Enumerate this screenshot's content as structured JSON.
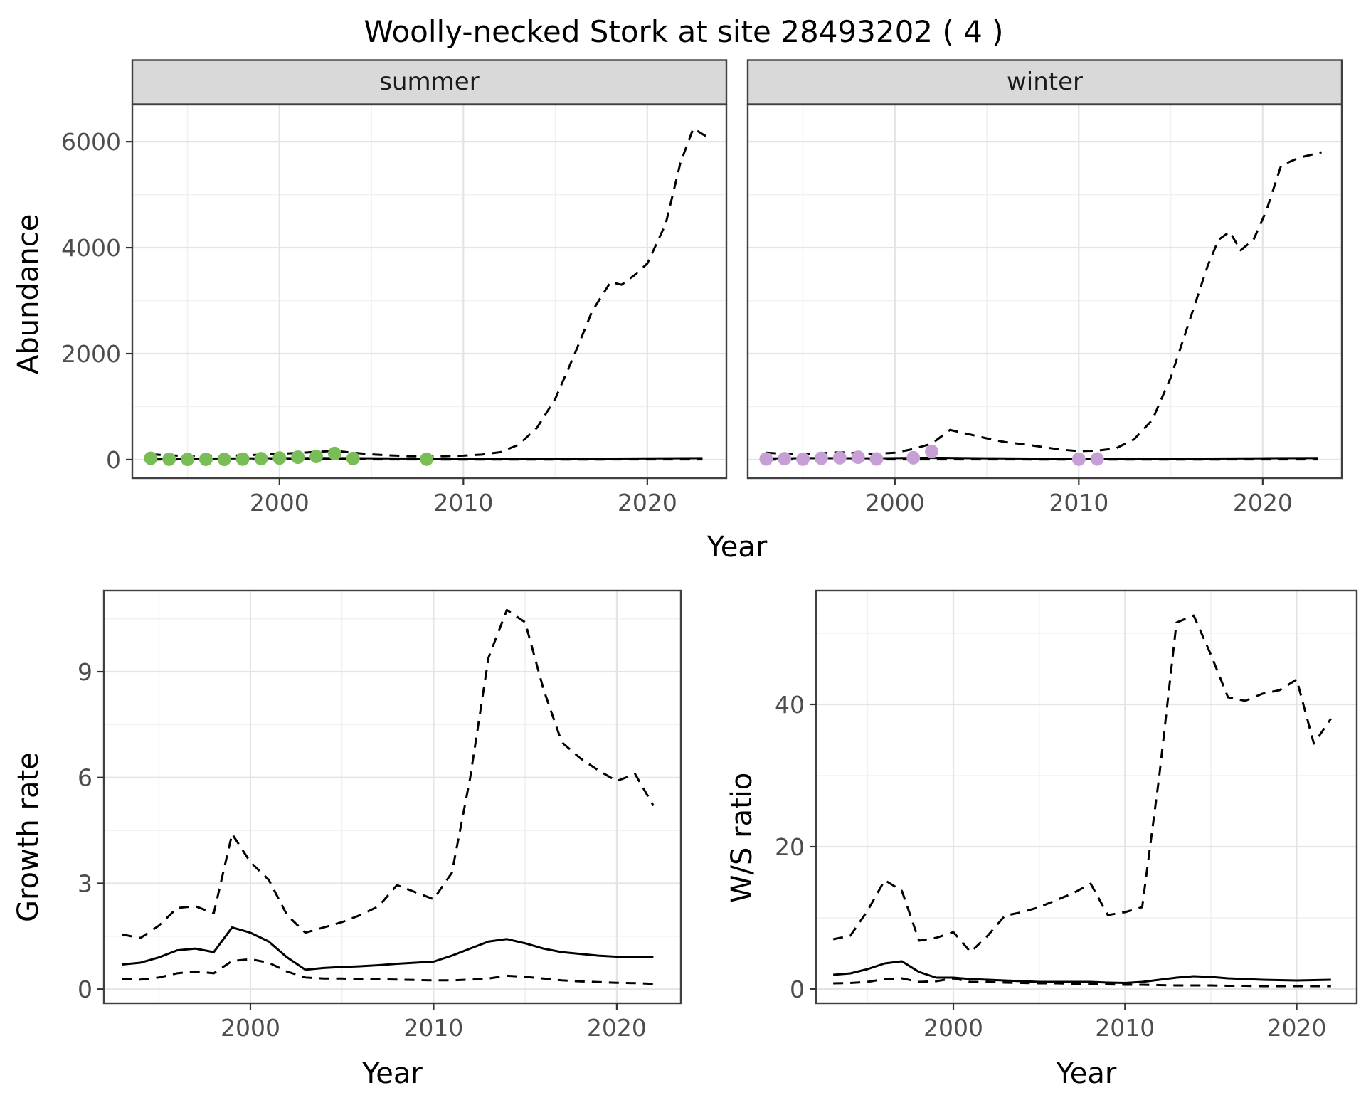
{
  "labels": {
    "title": "Woolly-necked Stork at site 28493202 ( 4 )",
    "x_shared": "Year",
    "y_top": "Abundance",
    "y_growth": "Growth rate",
    "y_ws": "W/S ratio",
    "x_bottom_left": "Year",
    "x_bottom_right": "Year",
    "facets": [
      "summer",
      "winter"
    ]
  },
  "colors": {
    "summer_points": "#79bd57",
    "winter_points": "#c59fd6",
    "line": "#000000",
    "strip_bg": "#d9d9d9",
    "strip_text": "#1a1a1a",
    "panel_border": "#404040",
    "grid_major": "#e4e4e4",
    "grid_minor": "#f1f1f1",
    "tick_text": "#4d4d4d",
    "tick_mark": "#333333"
  },
  "chart_data": [
    {
      "id": "abundance-summer",
      "type": "line",
      "facet_label": "summer",
      "xlabel": "Year",
      "ylabel": "Abundance",
      "xlim": [
        1992,
        2024.3
      ],
      "ylim": [
        -350,
        6700
      ],
      "xticks": [
        2000,
        2010,
        2020
      ],
      "xticks_minor": [
        1995,
        2005,
        2015
      ],
      "yticks": [
        0,
        2000,
        4000,
        6000
      ],
      "yticks_minor": [
        1000,
        3000,
        5000
      ],
      "grid": true,
      "legend": "none",
      "series": [
        {
          "name": "upper_ci",
          "style": "dashed",
          "x": [
            1993,
            1994,
            1995,
            1996,
            1997,
            1998,
            1999,
            2000,
            2001,
            2002,
            2003,
            2004,
            2005,
            2006,
            2007,
            2008,
            2009,
            2010,
            2011,
            2012,
            2013,
            2014,
            2015,
            2016,
            2017,
            2018,
            2018.6,
            2019.3,
            2020,
            2021,
            2021.8,
            2022.5,
            2023.2
          ],
          "y": [
            100,
            80,
            70,
            75,
            70,
            80,
            95,
            110,
            125,
            145,
            165,
            130,
            100,
            80,
            65,
            60,
            65,
            75,
            95,
            140,
            280,
            600,
            1150,
            1950,
            2800,
            3350,
            3300,
            3480,
            3700,
            4450,
            5600,
            6250,
            6100
          ]
        },
        {
          "name": "lower_ci",
          "style": "dashed",
          "x": [
            1993,
            1996,
            1999,
            2002,
            2005,
            2008,
            2011,
            2014,
            2017,
            2020,
            2023
          ],
          "y": [
            3,
            4,
            5,
            6,
            5,
            3,
            2,
            2,
            3,
            4,
            5
          ]
        },
        {
          "name": "fit",
          "style": "solid",
          "x": [
            1993,
            1996,
            1999,
            2002,
            2005,
            2008,
            2011,
            2014,
            2017,
            2020,
            2023
          ],
          "y": [
            18,
            20,
            25,
            30,
            25,
            18,
            15,
            15,
            18,
            22,
            28
          ]
        },
        {
          "name": "observed",
          "style": "points",
          "color": "#79bd57",
          "x": [
            1993,
            1994,
            1995,
            1996,
            1997,
            1998,
            1999,
            2000,
            2001,
            2002,
            2003,
            2004,
            2008
          ],
          "y": [
            25,
            8,
            4,
            6,
            5,
            10,
            18,
            30,
            45,
            60,
            115,
            20,
            8
          ]
        }
      ]
    },
    {
      "id": "abundance-winter",
      "type": "line",
      "facet_label": "winter",
      "xlabel": "Year",
      "ylabel": "Abundance",
      "xlim": [
        1992,
        2024.3
      ],
      "ylim": [
        -350,
        6700
      ],
      "xticks": [
        2000,
        2010,
        2020
      ],
      "xticks_minor": [
        1995,
        2005,
        2015
      ],
      "yticks": [
        0,
        2000,
        4000,
        6000
      ],
      "yticks_minor": [
        1000,
        3000,
        5000
      ],
      "grid": true,
      "legend": "none",
      "series": [
        {
          "name": "upper_ci",
          "style": "dashed",
          "x": [
            1993,
            1994,
            1995,
            1996,
            1997,
            1998,
            1999,
            2000,
            2001,
            2002,
            2003,
            2004,
            2005,
            2006,
            2007,
            2008,
            2009,
            2010,
            2011,
            2012,
            2013,
            2014,
            2015,
            2016,
            2017,
            2017.6,
            2018.2,
            2018.8,
            2019.5,
            2020.2,
            2021,
            2022,
            2023.2
          ],
          "y": [
            130,
            110,
            100,
            120,
            140,
            120,
            110,
            130,
            200,
            300,
            560,
            480,
            400,
            330,
            290,
            240,
            190,
            160,
            170,
            210,
            380,
            750,
            1550,
            2600,
            3650,
            4150,
            4300,
            3950,
            4150,
            4700,
            5550,
            5700,
            5800
          ]
        },
        {
          "name": "lower_ci",
          "style": "dashed",
          "x": [
            1993,
            1996,
            1999,
            2002,
            2005,
            2008,
            2011,
            2014,
            2017,
            2020,
            2023
          ],
          "y": [
            3,
            4,
            4,
            5,
            4,
            3,
            2,
            2,
            3,
            4,
            5
          ]
        },
        {
          "name": "fit",
          "style": "solid",
          "x": [
            1993,
            1996,
            1999,
            2002,
            2005,
            2008,
            2011,
            2014,
            2017,
            2020,
            2023
          ],
          "y": [
            22,
            28,
            25,
            35,
            25,
            18,
            15,
            15,
            20,
            25,
            30
          ]
        },
        {
          "name": "observed",
          "style": "points",
          "color": "#c59fd6",
          "x": [
            1993,
            1994,
            1995,
            1996,
            1997,
            1998,
            1999,
            2001,
            2002,
            2010,
            2011
          ],
          "y": [
            12,
            18,
            8,
            25,
            35,
            45,
            12,
            35,
            155,
            8,
            12
          ]
        }
      ]
    },
    {
      "id": "growth-rate",
      "type": "line",
      "xlabel": "Year",
      "ylabel": "Growth rate",
      "xlim": [
        1992,
        2023.5
      ],
      "ylim": [
        -0.4,
        11.3
      ],
      "xticks": [
        2000,
        2010,
        2020
      ],
      "xticks_minor": [
        1995,
        2005,
        2015
      ],
      "yticks": [
        0,
        3,
        6,
        9
      ],
      "yticks_minor": [
        1.5,
        4.5,
        7.5,
        10.5
      ],
      "grid": true,
      "legend": "none",
      "x": [
        1993,
        1994,
        1995,
        1996,
        1997,
        1998,
        1999,
        2000,
        2001,
        2002,
        2003,
        2004,
        2005,
        2006,
        2007,
        2008,
        2009,
        2010,
        2011,
        2012,
        2013,
        2014,
        2015,
        2016,
        2017,
        2018,
        2019,
        2020,
        2021,
        2022
      ],
      "series": [
        {
          "name": "upper_ci",
          "style": "dashed",
          "y": [
            1.55,
            1.45,
            1.8,
            2.3,
            2.35,
            2.15,
            4.4,
            3.6,
            3.1,
            2.1,
            1.6,
            1.75,
            1.9,
            2.1,
            2.35,
            2.95,
            2.75,
            2.55,
            3.3,
            6.0,
            9.4,
            10.75,
            10.4,
            8.5,
            7.0,
            6.55,
            6.2,
            5.9,
            6.1,
            5.2
          ]
        },
        {
          "name": "lower_ci",
          "style": "dashed",
          "y": [
            0.28,
            0.27,
            0.33,
            0.45,
            0.5,
            0.45,
            0.8,
            0.85,
            0.75,
            0.5,
            0.33,
            0.3,
            0.3,
            0.28,
            0.28,
            0.27,
            0.26,
            0.25,
            0.25,
            0.27,
            0.3,
            0.38,
            0.35,
            0.3,
            0.25,
            0.22,
            0.2,
            0.18,
            0.17,
            0.15
          ]
        },
        {
          "name": "fit",
          "style": "solid",
          "y": [
            0.7,
            0.75,
            0.9,
            1.1,
            1.15,
            1.05,
            1.75,
            1.6,
            1.35,
            0.9,
            0.55,
            0.6,
            0.63,
            0.65,
            0.68,
            0.72,
            0.75,
            0.78,
            0.95,
            1.15,
            1.35,
            1.42,
            1.3,
            1.15,
            1.05,
            1.0,
            0.95,
            0.92,
            0.9,
            0.9
          ]
        }
      ]
    },
    {
      "id": "ws-ratio",
      "type": "line",
      "xlabel": "Year",
      "ylabel": "W/S ratio",
      "xlim": [
        1992,
        2023.5
      ],
      "ylim": [
        -2,
        56
      ],
      "xticks": [
        2000,
        2010,
        2020
      ],
      "xticks_minor": [
        1995,
        2005,
        2015
      ],
      "yticks": [
        0,
        20,
        40
      ],
      "yticks_minor": [
        10,
        30,
        50
      ],
      "grid": true,
      "legend": "none",
      "x": [
        1993,
        1994,
        1995,
        1996,
        1997,
        1998,
        1999,
        2000,
        2001,
        2002,
        2003,
        2004,
        2005,
        2006,
        2007,
        2008,
        2009,
        2010,
        2011,
        2012,
        2013,
        2014,
        2015,
        2016,
        2017,
        2018,
        2019,
        2020,
        2021,
        2022
      ],
      "series": [
        {
          "name": "upper_ci",
          "style": "dashed",
          "y": [
            7.0,
            7.5,
            11.0,
            15.3,
            13.8,
            6.8,
            7.2,
            8.0,
            5.2,
            7.5,
            10.3,
            10.8,
            11.5,
            12.5,
            13.5,
            14.8,
            10.4,
            10.8,
            11.5,
            30,
            51.5,
            52.5,
            47,
            41,
            40.5,
            41.5,
            42,
            43.5,
            34.5,
            38
          ]
        },
        {
          "name": "lower_ci",
          "style": "dashed",
          "y": [
            0.8,
            0.85,
            1.0,
            1.4,
            1.5,
            1.0,
            1.1,
            1.5,
            1.0,
            1.0,
            0.9,
            0.85,
            0.8,
            0.8,
            0.75,
            0.7,
            0.65,
            0.6,
            0.6,
            0.55,
            0.5,
            0.5,
            0.5,
            0.45,
            0.45,
            0.4,
            0.4,
            0.4,
            0.4,
            0.4
          ]
        },
        {
          "name": "fit",
          "style": "solid",
          "y": [
            2.0,
            2.2,
            2.8,
            3.6,
            3.9,
            2.4,
            1.6,
            1.6,
            1.4,
            1.3,
            1.2,
            1.1,
            1.0,
            1.0,
            1.0,
            1.0,
            0.9,
            0.85,
            1.0,
            1.3,
            1.6,
            1.8,
            1.7,
            1.5,
            1.4,
            1.3,
            1.25,
            1.2,
            1.25,
            1.3
          ]
        }
      ]
    }
  ]
}
